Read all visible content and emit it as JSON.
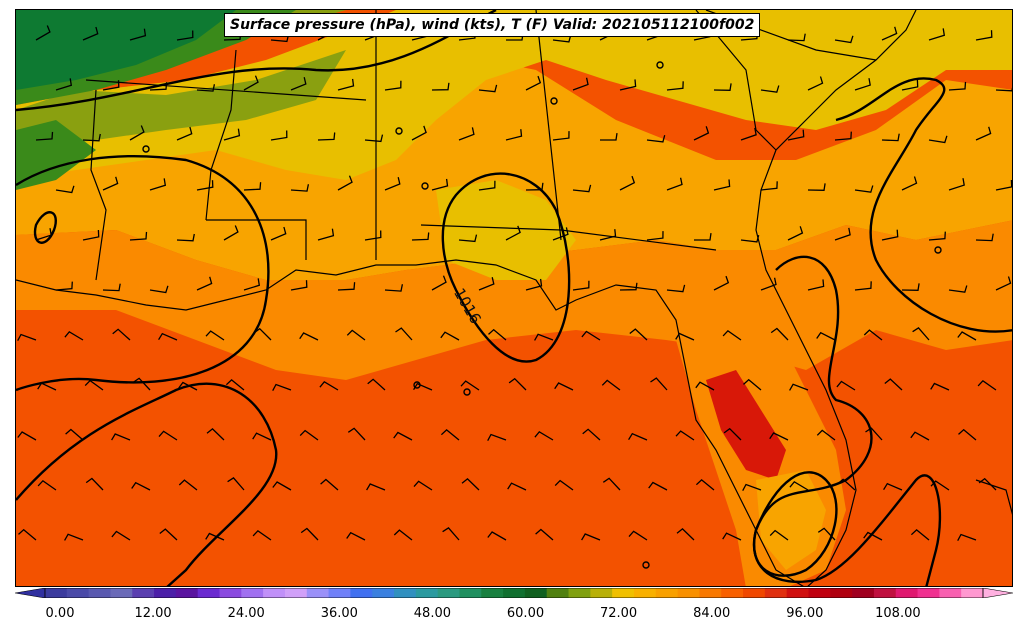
{
  "title": "Surface pressure (hPa), wind (kts), T (F) Valid: 202105112100f002",
  "isobar_label": "1016",
  "colorbar": {
    "tick_labels": [
      "0.00",
      "12.00",
      "24.00",
      "36.00",
      "48.00",
      "60.00",
      "72.00",
      "84.00",
      "96.00",
      "108.00"
    ],
    "colors": [
      "#3b3b9e",
      "#4a4aa8",
      "#5959b0",
      "#6a6ab8",
      "#5a3fb0",
      "#4b1fa8",
      "#5a14a0",
      "#6a2ad0",
      "#8a4ae0",
      "#a070f0",
      "#c090f8",
      "#d0a0f8",
      "#9a90f8",
      "#7080f8",
      "#4070f0",
      "#3a80e0",
      "#3090c0",
      "#2a9aa0",
      "#2a9a80",
      "#209060",
      "#188040",
      "#107030",
      "#106020",
      "#508010",
      "#80a010",
      "#b8b008",
      "#f0c000",
      "#f8b000",
      "#f8a000",
      "#f89000",
      "#f87800",
      "#f86000",
      "#f04800",
      "#e03010",
      "#d01010",
      "#c00010",
      "#b00010",
      "#a00020",
      "#c01040",
      "#e01870",
      "#f03090",
      "#f860b0",
      "#ff98d0"
    ]
  },
  "temperature_colors": {
    "green_dark": "#0e7a32",
    "green": "#3a8a1a",
    "olive": "#8aa010",
    "yellow": "#e8bf00",
    "gold": "#f8a400",
    "orange": "#fa8a00",
    "orange_red": "#f86a00",
    "red_orange": "#f35200",
    "red": "#d81808"
  }
}
